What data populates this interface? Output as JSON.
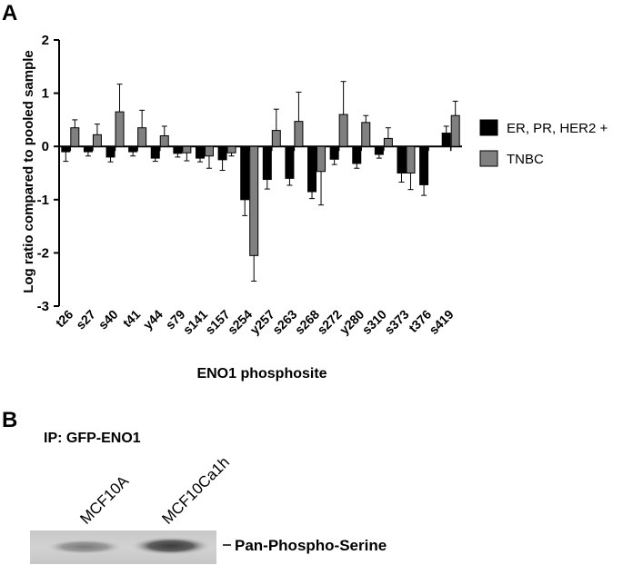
{
  "panel_a": {
    "label": "A",
    "chart_data": {
      "type": "bar",
      "title": "",
      "xlabel": "ENO1 phosphosite",
      "ylabel": "Log ratio compared to pooled sample",
      "ylim": [
        -3,
        2
      ],
      "yticks": [
        "2",
        "1",
        "0",
        "-1",
        "-2",
        "-3"
      ],
      "categories": [
        "t26",
        "s27",
        "s40",
        "t41",
        "y44",
        "s79",
        "s141",
        "s157",
        "s254",
        "y257",
        "s263",
        "s268",
        "s272",
        "y280",
        "s310",
        "s373",
        "t376",
        "s419"
      ],
      "series": [
        {
          "name": "ER, PR, HER2 +",
          "color": "#000000",
          "values": [
            -0.1,
            -0.1,
            -0.2,
            -0.1,
            -0.22,
            -0.13,
            -0.22,
            -0.25,
            -1.0,
            -0.62,
            -0.6,
            -0.85,
            -0.24,
            -0.32,
            -0.15,
            -0.5,
            -0.72,
            0.25
          ],
          "errors": [
            0.18,
            0.08,
            0.09,
            0.08,
            0.06,
            0.07,
            0.07,
            0.2,
            0.3,
            0.18,
            0.13,
            0.13,
            0.1,
            0.09,
            0.07,
            0.17,
            0.2,
            0.13
          ]
        },
        {
          "name": "TNBC",
          "color": "#808080",
          "values": [
            0.35,
            0.22,
            0.65,
            0.35,
            0.2,
            -0.12,
            -0.18,
            -0.12,
            -2.05,
            0.3,
            0.47,
            -0.47,
            0.6,
            0.45,
            0.15,
            -0.5,
            null,
            0.58
          ],
          "errors": [
            0.15,
            0.2,
            0.52,
            0.33,
            0.18,
            0.15,
            0.23,
            0.06,
            0.48,
            0.4,
            0.55,
            0.63,
            0.62,
            0.13,
            0.2,
            0.31,
            null,
            0.27
          ]
        }
      ],
      "legend": {
        "position": "right"
      }
    }
  },
  "panel_b": {
    "label": "B",
    "ip_label": "IP: GFP-ENO1",
    "lanes": [
      "MCF10A",
      "MCF10Ca1h"
    ],
    "band_label": "Pan-Phospho-Serine"
  }
}
